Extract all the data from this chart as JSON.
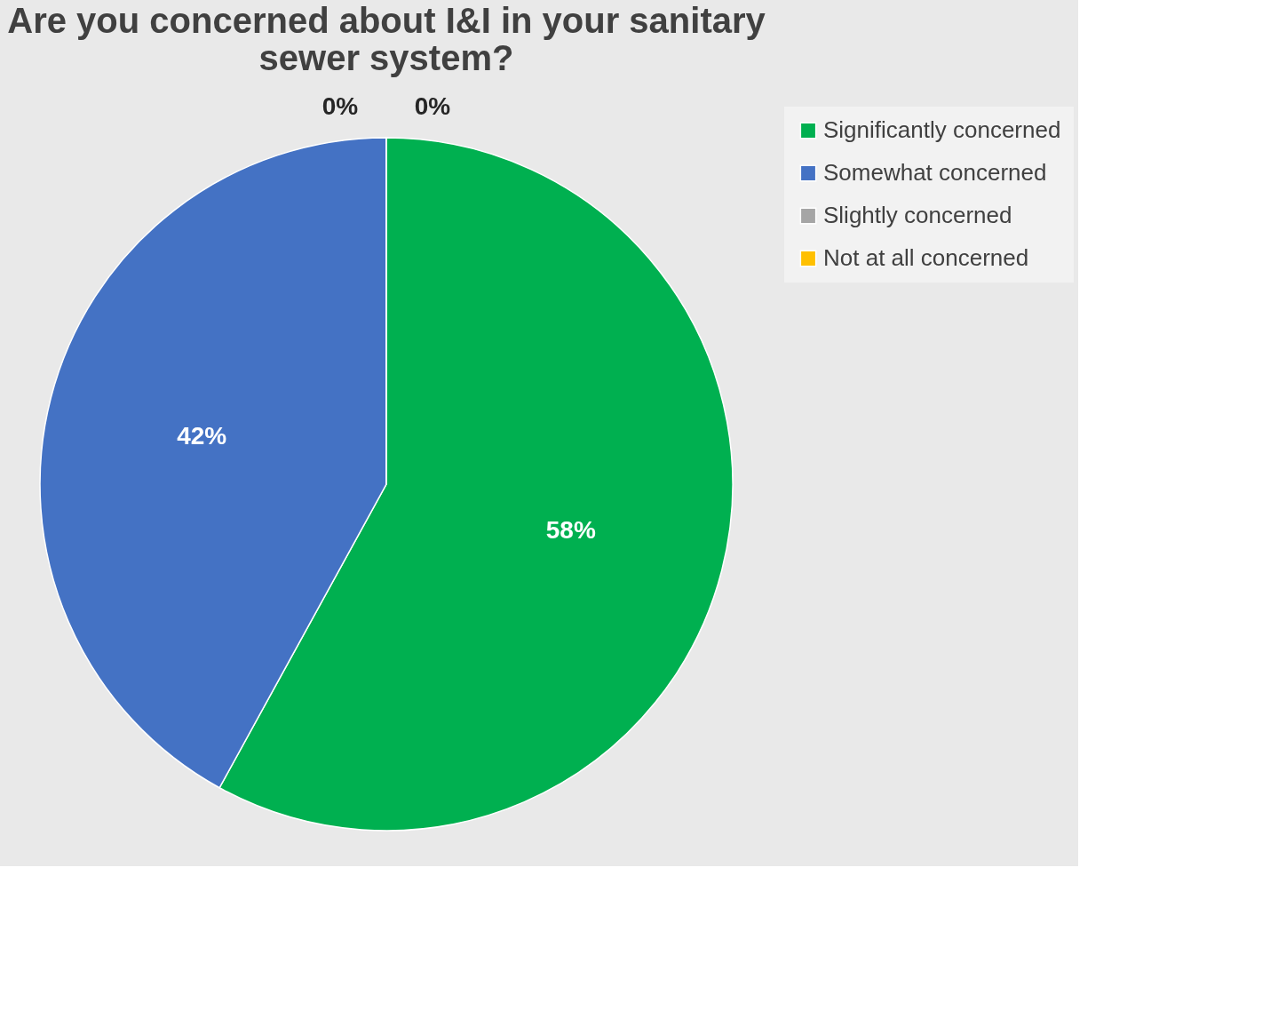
{
  "chart_data": {
    "type": "pie",
    "title": "Are you concerned about I&I in your sanitary sewer system?",
    "categories": [
      "Significantly concerned",
      "Somewhat concerned",
      "Slightly concerned",
      "Not at all concerned"
    ],
    "values": [
      58,
      42,
      0,
      0
    ],
    "colors": [
      "#00b050",
      "#4472c4",
      "#a5a5a5",
      "#ffc000"
    ],
    "value_labels": [
      "58%",
      "42%",
      "0%",
      "0%"
    ],
    "legend": "right"
  }
}
